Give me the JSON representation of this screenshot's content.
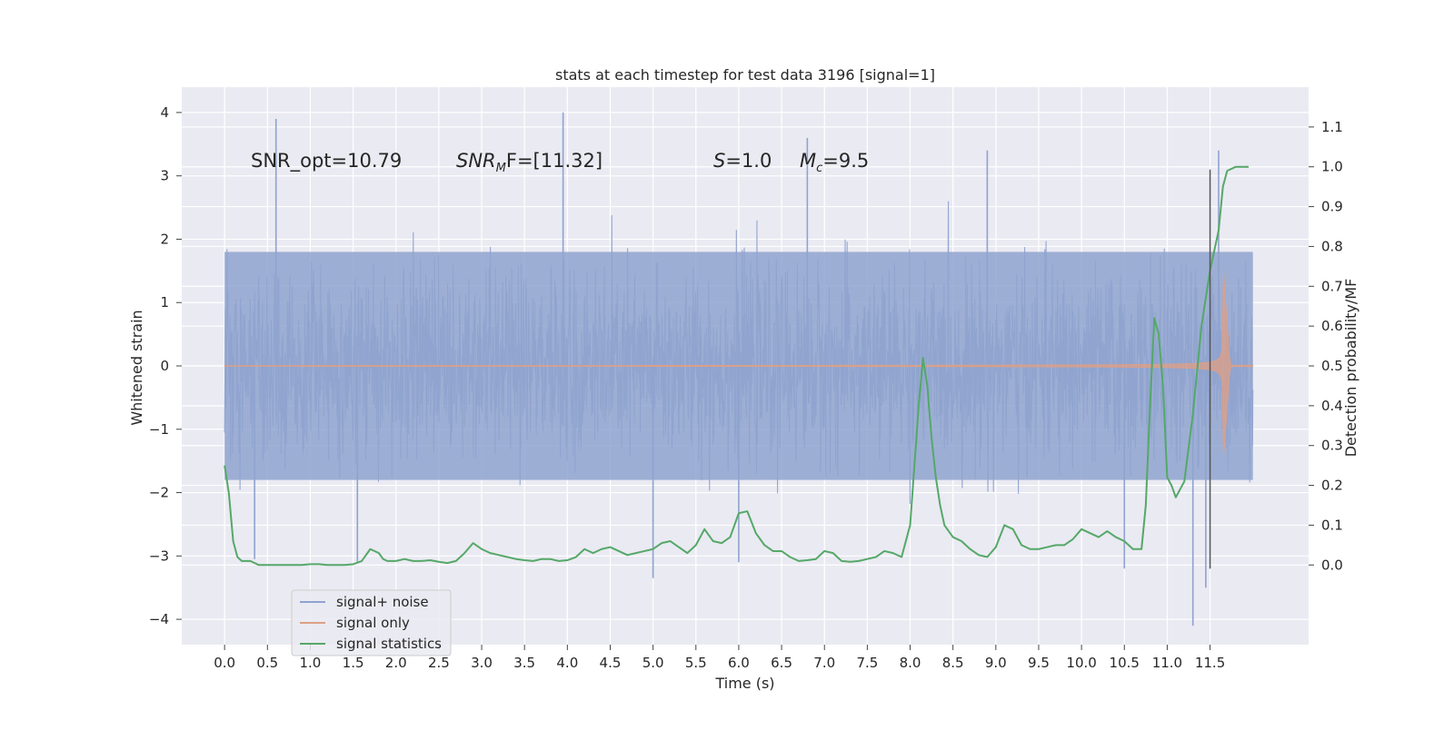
{
  "chart_data": {
    "type": "line",
    "title": "stats at each timestep for test data 3196 [signal=1]",
    "xlabel": "Time (s)",
    "ylabel": "Whitened strain",
    "ylabel_right": "Detection probability/MF",
    "xlim": [
      -0.5,
      12.65
    ],
    "ylim": [
      -4.4,
      4.4
    ],
    "ylim_right": [
      -0.2,
      1.2
    ],
    "x_ticks": [
      0.0,
      0.5,
      1.0,
      1.5,
      2.0,
      2.5,
      3.0,
      3.5,
      4.0,
      4.5,
      5.0,
      5.5,
      6.0,
      6.5,
      7.0,
      7.5,
      8.0,
      8.5,
      9.0,
      9.5,
      10.0,
      10.5,
      11.0,
      11.5
    ],
    "x_tick_labels": [
      "0.0",
      "0.5",
      "1.0",
      "1.5",
      "2.0",
      "2.5",
      "3.0",
      "3.5",
      "4.0",
      "4.5",
      "5.0",
      "5.5",
      "6.0",
      "6.5",
      "7.0",
      "7.5",
      "8.0",
      "8.5",
      "9.0",
      "9.5",
      "10.0",
      "10.5",
      "11.0",
      "11.5"
    ],
    "y_ticks": [
      -4,
      -3,
      -2,
      -1,
      0,
      1,
      2,
      3,
      4
    ],
    "y_tick_labels": [
      "−4",
      "−3",
      "−2",
      "−1",
      "0",
      "1",
      "2",
      "3",
      "4"
    ],
    "y_ticks_right": [
      0.0,
      0.1,
      0.2,
      0.3,
      0.4,
      0.5,
      0.6,
      0.7,
      0.8,
      0.9,
      1.0,
      1.1
    ],
    "y_tick_labels_right": [
      "0.0",
      "0.1",
      "0.2",
      "0.3",
      "0.4",
      "0.5",
      "0.6",
      "0.7",
      "0.8",
      "0.9",
      "1.0",
      "1.1"
    ],
    "grid": true,
    "legend_position": "lower-left",
    "annotations": {
      "snr_opt": "SNR_opt=10.79",
      "snr_mf_main": "SNR",
      "snr_mf_sub": "M",
      "snr_mf_rest": "F=[11.32]",
      "s_italic": "S",
      "s_rest": "=1.0",
      "mc_main": "M",
      "mc_sub": "c",
      "mc_rest": "=9.5"
    },
    "series": [
      {
        "name": "signal+ noise",
        "axis": "left",
        "color": "#8fa3cf",
        "description_of_values": "whitened strain noise, approx. uniform amplitude",
        "noise_seed": 3196,
        "x_range": [
          0.0,
          12.0
        ],
        "typical_peak_max": 2.0,
        "extreme_peaks": [
          {
            "x": 0.6,
            "y": 3.9
          },
          {
            "x": 3.95,
            "y": 4.0
          },
          {
            "x": 6.8,
            "y": 3.6
          },
          {
            "x": 8.9,
            "y": 3.4
          },
          {
            "x": 11.6,
            "y": 3.4
          },
          {
            "x": 11.3,
            "y": -4.1
          },
          {
            "x": 11.45,
            "y": -3.5
          },
          {
            "x": 5.0,
            "y": -3.35
          },
          {
            "x": 10.5,
            "y": -3.2
          },
          {
            "x": 1.55,
            "y": -3.1
          },
          {
            "x": 0.35,
            "y": -3.05
          },
          {
            "x": 6.0,
            "y": -3.1
          }
        ]
      },
      {
        "name": "signal only",
        "axis": "left",
        "color": "#dd9f86",
        "description_of_values": "chirp waveform growing to merger near t=11.65 s",
        "x_range": [
          0.0,
          12.0
        ],
        "merger_time": 11.65,
        "peak_upper": 1.62,
        "peak_lower": -1.42
      },
      {
        "name": "signal statistics",
        "axis": "right",
        "color": "#55a868",
        "x": [
          0.0,
          0.05,
          0.1,
          0.15,
          0.2,
          0.3,
          0.4,
          0.5,
          0.6,
          0.7,
          0.8,
          0.9,
          1.0,
          1.1,
          1.2,
          1.3,
          1.4,
          1.5,
          1.6,
          1.7,
          1.8,
          1.85,
          1.9,
          2.0,
          2.1,
          2.2,
          2.3,
          2.4,
          2.5,
          2.6,
          2.7,
          2.8,
          2.9,
          3.0,
          3.1,
          3.2,
          3.3,
          3.4,
          3.5,
          3.6,
          3.7,
          3.8,
          3.9,
          4.0,
          4.1,
          4.2,
          4.3,
          4.4,
          4.5,
          4.6,
          4.7,
          4.8,
          4.9,
          5.0,
          5.1,
          5.2,
          5.3,
          5.4,
          5.5,
          5.6,
          5.7,
          5.8,
          5.9,
          6.0,
          6.1,
          6.2,
          6.3,
          6.4,
          6.5,
          6.6,
          6.7,
          6.8,
          6.9,
          7.0,
          7.1,
          7.2,
          7.3,
          7.4,
          7.5,
          7.6,
          7.7,
          7.8,
          7.9,
          8.0,
          8.1,
          8.15,
          8.2,
          8.25,
          8.3,
          8.35,
          8.4,
          8.5,
          8.6,
          8.7,
          8.8,
          8.9,
          9.0,
          9.1,
          9.2,
          9.3,
          9.4,
          9.5,
          9.6,
          9.7,
          9.8,
          9.9,
          10.0,
          10.1,
          10.2,
          10.3,
          10.4,
          10.5,
          10.6,
          10.7,
          10.75,
          10.8,
          10.85,
          10.9,
          10.95,
          11.0,
          11.05,
          11.1,
          11.2,
          11.3,
          11.4,
          11.5,
          11.6,
          11.65,
          11.7,
          11.8,
          11.9,
          11.95
        ],
        "values": [
          0.25,
          0.18,
          0.06,
          0.02,
          0.01,
          0.01,
          0.0,
          0.0,
          0.0,
          0.0,
          0.0,
          0.0,
          0.002,
          0.002,
          0.0,
          0.0,
          0.0,
          0.002,
          0.01,
          0.04,
          0.03,
          0.015,
          0.01,
          0.01,
          0.015,
          0.01,
          0.01,
          0.012,
          0.008,
          0.005,
          0.01,
          0.03,
          0.055,
          0.04,
          0.03,
          0.025,
          0.02,
          0.015,
          0.012,
          0.01,
          0.015,
          0.015,
          0.01,
          0.012,
          0.02,
          0.04,
          0.03,
          0.04,
          0.045,
          0.035,
          0.025,
          0.03,
          0.035,
          0.04,
          0.055,
          0.06,
          0.045,
          0.03,
          0.05,
          0.09,
          0.06,
          0.055,
          0.07,
          0.13,
          0.135,
          0.08,
          0.05,
          0.035,
          0.035,
          0.02,
          0.01,
          0.012,
          0.015,
          0.035,
          0.03,
          0.01,
          0.008,
          0.01,
          0.015,
          0.02,
          0.035,
          0.03,
          0.02,
          0.1,
          0.4,
          0.52,
          0.45,
          0.32,
          0.22,
          0.15,
          0.1,
          0.07,
          0.06,
          0.04,
          0.025,
          0.02,
          0.045,
          0.1,
          0.09,
          0.05,
          0.04,
          0.04,
          0.045,
          0.05,
          0.05,
          0.065,
          0.09,
          0.08,
          0.07,
          0.085,
          0.07,
          0.06,
          0.04,
          0.04,
          0.15,
          0.4,
          0.62,
          0.58,
          0.45,
          0.22,
          0.2,
          0.17,
          0.21,
          0.38,
          0.6,
          0.74,
          0.84,
          0.95,
          0.99,
          1.0,
          1.0,
          1.0
        ],
        "x_end": 11.95
      }
    ],
    "vertical_line": {
      "x": 11.5,
      "y_top": 3.1,
      "y_bottom": -3.2,
      "color": "#555555"
    }
  }
}
